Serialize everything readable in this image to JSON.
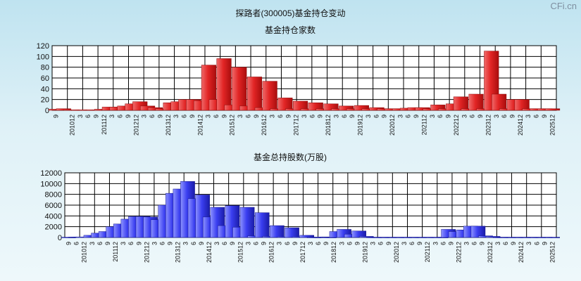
{
  "page": {
    "title": "探路者(300005)基金持仓变动",
    "watermark": "CFi.cn"
  },
  "colors": {
    "red_top": "#f06a6a",
    "red_mid": "#e22525",
    "red_dark": "#a90d0d",
    "blue_top": "#8d93ff",
    "blue_mid": "#3a3ef0",
    "blue_dark": "#1a1ca8",
    "plot_bg": "#ffffff",
    "grid": "#000000"
  },
  "chart_data": [
    {
      "type": "bar",
      "title": "基金持仓家数",
      "ylim": [
        0,
        120
      ],
      "yticks": [
        0,
        20,
        40,
        60,
        80,
        100,
        120
      ],
      "grid": true,
      "categories": [
        "9",
        "12",
        "3",
        "6",
        "9",
        "201012",
        "3",
        "6",
        "9",
        "201112",
        "3",
        "6",
        "9",
        "201212",
        "3",
        "6",
        "9",
        "201312",
        "3",
        "6",
        "9",
        "201412",
        "3",
        "6",
        "9",
        "201512",
        "3",
        "6",
        "9",
        "201612",
        "3",
        "6",
        "9",
        "201712",
        "3",
        "6",
        "9",
        "201812",
        "3",
        "6",
        "9",
        "201912",
        "3",
        "6",
        "9",
        "202012",
        "3",
        "6",
        "9",
        "202112",
        "3",
        "6",
        "9",
        "202212",
        "3",
        "6",
        "9",
        "202312",
        "3",
        "6",
        "9",
        "202412",
        "3",
        "6",
        "9",
        "202512"
      ],
      "x_tick_labels": [
        "9",
        "",
        "201012",
        "3",
        "6",
        "9",
        "201112",
        "3",
        "6",
        "9",
        "201212",
        "3",
        "6",
        "9",
        "201312",
        "3",
        "6",
        "9",
        "201412",
        "3",
        "6",
        "9",
        "201512",
        "3",
        "6",
        "9",
        "201612",
        "3",
        "6",
        "9",
        "201712",
        "3",
        "6",
        "9",
        "201812",
        "3",
        "6",
        "9",
        "201912",
        "3",
        "6",
        "9",
        "202012",
        "3",
        "6",
        "9",
        "202112",
        "3",
        "6",
        "9",
        "202212",
        "3",
        "6",
        "9",
        "202312",
        "3",
        "6",
        "9",
        "202412",
        "3",
        "6",
        "9",
        "202512"
      ],
      "values": [
        2,
        3,
        1,
        1,
        1,
        1,
        2,
        6,
        6,
        8,
        12,
        16,
        8,
        5,
        3,
        14,
        16,
        20,
        20,
        18,
        84,
        20,
        96,
        10,
        80,
        8,
        62,
        5,
        54,
        3,
        23,
        3,
        17,
        3,
        14,
        3,
        12,
        3,
        8,
        3,
        9,
        3,
        5,
        3,
        3,
        3,
        4,
        5,
        5,
        3,
        10,
        3,
        12,
        25,
        3,
        30,
        3,
        110,
        30,
        3,
        20,
        20,
        3,
        3,
        3,
        3
      ]
    },
    {
      "type": "bar",
      "title": "基金总持股数(万股)",
      "ylim": [
        0,
        12000
      ],
      "yticks": [
        0,
        2000,
        4000,
        6000,
        8000,
        10000,
        12000
      ],
      "grid": true,
      "categories": [
        "9",
        "12",
        "3",
        "6",
        "9",
        "201012",
        "3",
        "6",
        "9",
        "201112",
        "3",
        "6",
        "9",
        "201212",
        "3",
        "6",
        "9",
        "201312",
        "3",
        "6",
        "9",
        "201412",
        "3",
        "6",
        "9",
        "201512",
        "3",
        "6",
        "9",
        "201612",
        "3",
        "6",
        "9",
        "201712",
        "3",
        "6",
        "9",
        "201812",
        "3",
        "6",
        "9",
        "201912",
        "3",
        "6",
        "9",
        "202012",
        "3",
        "6",
        "9",
        "202112",
        "3",
        "6",
        "9",
        "202212",
        "3",
        "6",
        "9",
        "202312",
        "3",
        "6",
        "9",
        "202412",
        "3",
        "6",
        "9",
        "202512"
      ],
      "x_tick_labels": [
        "9",
        "6",
        "201012",
        "3",
        "6",
        "9",
        "201112",
        "3",
        "6",
        "9",
        "201212",
        "3",
        "6",
        "9",
        "201312",
        "3",
        "6",
        "9",
        "201412",
        "3",
        "6",
        "9",
        "201512",
        "3",
        "6",
        "9",
        "201612",
        "3",
        "6",
        "9",
        "201712",
        "3",
        "6",
        "9",
        "201812",
        "3",
        "6",
        "9",
        "201912",
        "3",
        "6",
        "9",
        "202012",
        "3",
        "6",
        "9",
        "202112",
        "3",
        "6",
        "9",
        "202212",
        "3",
        "6",
        "9",
        "202312",
        "3",
        "6",
        "9",
        "202412",
        "3",
        "6",
        "9",
        "202512"
      ],
      "values": [
        50,
        100,
        100,
        400,
        800,
        1100,
        2000,
        2500,
        3400,
        3900,
        3900,
        3800,
        3300,
        6000,
        8200,
        9000,
        10400,
        7200,
        7900,
        3800,
        5600,
        2200,
        5900,
        1900,
        5600,
        300,
        4600,
        200,
        2200,
        100,
        1800,
        100,
        400,
        50,
        100,
        50,
        1100,
        1500,
        600,
        1200,
        200,
        50,
        50,
        50,
        50,
        50,
        50,
        50,
        50,
        50,
        50,
        1500,
        1100,
        1400,
        2100,
        2100,
        300,
        200,
        50,
        50,
        50,
        50,
        50,
        50,
        50,
        50
      ]
    }
  ]
}
